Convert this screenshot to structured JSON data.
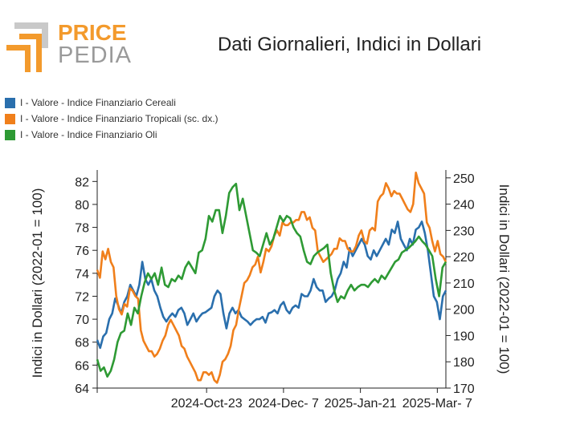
{
  "logo": {
    "word1": "PRICE",
    "word2": "PEDIA"
  },
  "chart_data": {
    "type": "line",
    "title": "Dati Giornalieri, Indici in Dollari",
    "ylabel": "Indici in Dollari (2022-01 = 100)",
    "y2label": "Indici in Dollari (2022-01 = 100)",
    "xlabel": "",
    "x_ticks": [
      "2024-Oct-23",
      "2024-Dec- 7",
      "2025-Jan-21",
      "2025-Mar- 7"
    ],
    "x_range": [
      "2024-Aug-20",
      "2025-Mar-12"
    ],
    "ylim": [
      64,
      83
    ],
    "y_ticks": [
      64,
      66,
      68,
      70,
      72,
      74,
      76,
      78,
      80,
      82
    ],
    "y2lim": [
      170,
      253
    ],
    "y2_ticks": [
      170,
      180,
      190,
      200,
      210,
      220,
      230,
      240,
      250
    ],
    "legend_position": "top-left",
    "grid": false,
    "series": [
      {
        "name": "I - Valore - Indice Finanziario Cereali",
        "axis": "left",
        "color": "#2a6fad",
        "values": [
          68.2,
          67.5,
          68.5,
          68.8,
          70.0,
          70.5,
          71.8,
          71.2,
          70.5,
          71.5,
          72.0,
          73.0,
          72.5,
          72.0,
          73.0,
          75.0,
          73.5,
          73.0,
          73.5,
          72.5,
          72.0,
          71.0,
          70.2,
          69.8,
          70.2,
          70.5,
          70.2,
          70.8,
          71.0,
          70.5,
          69.5,
          70.0,
          70.5,
          69.8,
          70.2,
          70.5,
          70.6,
          70.8,
          71.0,
          72.0,
          72.5,
          72.2,
          70.5,
          69.2,
          70.5,
          71.0,
          70.5,
          70.8,
          70.2,
          70.0,
          69.8,
          69.5,
          69.8,
          70.0,
          70.0,
          70.2,
          69.7,
          70.5,
          70.6,
          70.8,
          70.5,
          71.2,
          71.5,
          70.8,
          70.5,
          71.0,
          71.2,
          71.0,
          72.2,
          72.0,
          72.0,
          72.5,
          73.5,
          72.8,
          72.5,
          72.5,
          71.5,
          71.8,
          72.0,
          72.5,
          73.5,
          74.0,
          75.0,
          74.5,
          76.2,
          75.5,
          76.0,
          76.5,
          77.0,
          76.5,
          75.5,
          75.2,
          76.0,
          75.5,
          76.0,
          76.5,
          77.0,
          76.5,
          77.8,
          77.5,
          78.5,
          77.0,
          76.5,
          76.0,
          77.0,
          76.5,
          77.8,
          78.0,
          78.5,
          77.5,
          76.0,
          74.0,
          72.0,
          71.5,
          70.0,
          72.0,
          72.5
        ]
      },
      {
        "name": "I - Valore - Indice Finanziario Tropicali (sc. dx.)",
        "axis": "right",
        "color": "#f07f1b",
        "values": [
          215,
          212,
          222,
          219,
          223,
          218,
          216,
          205,
          200,
          198,
          202,
          201,
          208,
          207,
          205,
          204,
          192,
          188,
          186,
          184,
          184,
          182,
          183,
          185,
          188,
          190,
          194,
          196,
          194,
          192,
          190,
          186,
          185,
          182,
          180,
          178,
          176,
          173,
          173,
          176,
          176,
          175,
          176,
          173,
          172,
          175,
          180,
          181,
          183,
          186,
          192,
          194,
          200,
          205,
          210,
          211,
          213,
          216,
          217,
          220,
          214,
          218,
          223,
          222,
          224,
          228,
          230,
          228,
          233,
          232,
          232,
          233,
          233,
          234,
          234,
          237,
          237,
          234,
          235,
          231,
          230,
          222,
          220,
          218,
          219,
          220,
          221,
          223,
          223,
          227,
          226,
          226,
          223,
          222,
          222,
          224,
          228,
          230,
          226,
          225,
          230,
          231,
          230,
          241,
          243,
          244,
          248,
          246,
          243,
          245,
          244,
          244,
          242,
          240,
          238,
          237,
          240,
          252,
          248,
          246,
          244,
          233,
          231,
          226,
          222,
          226,
          221,
          220,
          218
        ]
      },
      {
        "name": "I - Valore - Indice Finanziario Oli",
        "axis": "left",
        "color": "#2e9a34",
        "values": [
          66.5,
          65.5,
          65.8,
          65.0,
          65.5,
          66.5,
          68.0,
          68.8,
          69.0,
          70.5,
          69.5,
          71.0,
          70.5,
          72.0,
          73.2,
          74.0,
          73.5,
          74.0,
          73.0,
          74.5,
          73.0,
          72.8,
          73.5,
          73.3,
          73.8,
          73.5,
          74.5,
          75.0,
          74.5,
          74.0,
          75.8,
          76.0,
          77.0,
          79.0,
          78.5,
          79.5,
          79.5,
          77.5,
          79.0,
          81.0,
          81.5,
          81.8,
          79.5,
          80.5,
          79.0,
          77.5,
          76.0,
          75.8,
          75.5,
          76.5,
          77.5,
          76.5,
          77.0,
          78.0,
          79.0,
          78.5,
          79.0,
          78.8,
          78.0,
          77.5,
          77.2,
          76.0,
          75.0,
          74.8,
          75.5,
          75.8,
          76.0,
          76.2,
          76.5,
          74.0,
          72.5,
          71.5,
          72.0,
          71.8,
          72.5,
          73.0,
          72.5,
          72.8,
          73.0,
          73.0,
          72.8,
          73.2,
          73.5,
          73.2,
          73.8,
          73.5,
          74.0,
          74.5,
          75.0,
          75.2,
          75.8,
          76.0,
          76.2,
          76.5,
          76.8,
          77.2,
          76.8,
          76.5,
          76.0,
          75.5,
          73.5,
          72.0,
          74.5,
          75.0
        ]
      }
    ]
  }
}
